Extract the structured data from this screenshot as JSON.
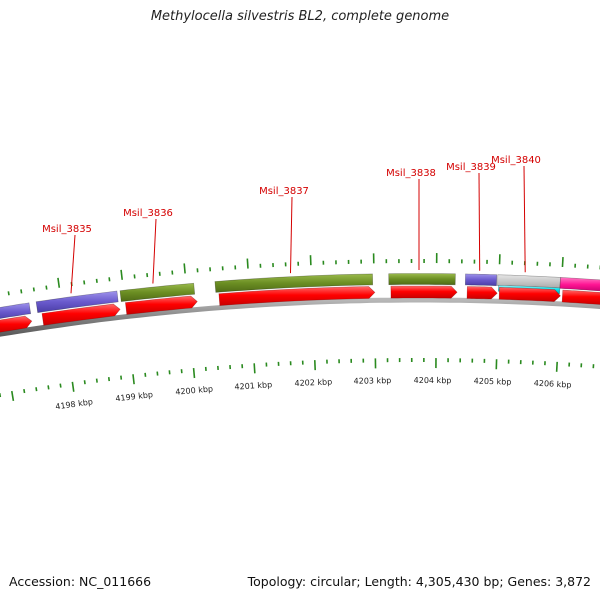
{
  "title": "Methylocella silvestris BL2, complete genome",
  "footer": {
    "accession": "Accession: NC_011666",
    "summary": "Topology: circular; Length: 4,305,430 bp; Genes: 3,872"
  },
  "colors": {
    "cds": "#ff0000",
    "gene_green": "#6b8e23",
    "gene_purple": "#6a5acd",
    "gene_gray": "#c0c0c0",
    "gene_cyan": "#00e5ee",
    "gene_pink": "#ff1493",
    "tick": "#2a8a1f",
    "backbone": "#808080",
    "label": "#d40000"
  },
  "gene_labels": [
    "Msil_3835",
    "Msil_3836",
    "Msil_3837",
    "Msil_3838",
    "Msil_3839",
    "Msil_3840"
  ],
  "scale_labels": [
    "4198 kbp",
    "4199 kbp",
    "4200 kbp",
    "4201 kbp",
    "4202 kbp",
    "4203 kbp",
    "4204 kbp",
    "4205 kbp",
    "4206 kbp"
  ]
}
